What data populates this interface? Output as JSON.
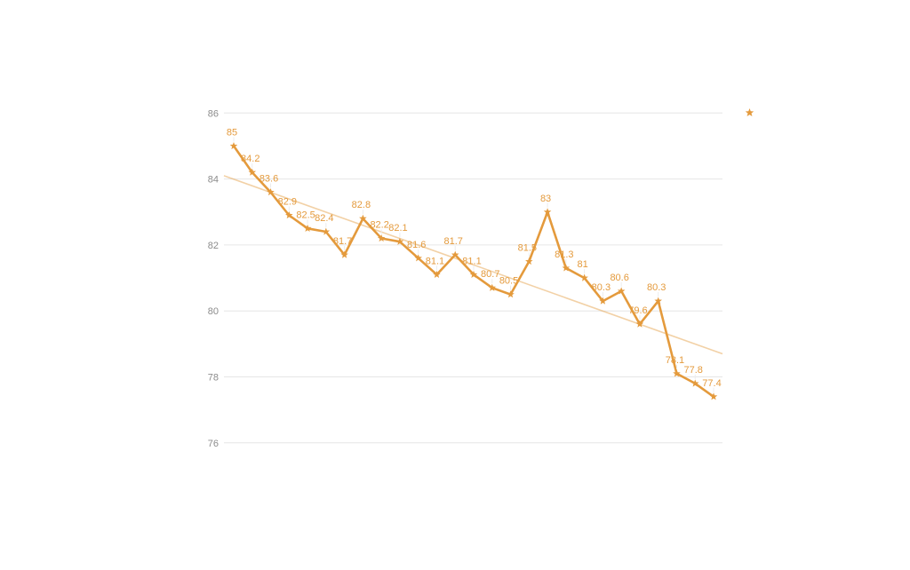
{
  "chart_data": {
    "type": "line",
    "title": "",
    "series": [
      {
        "name": "",
        "marker": "star",
        "values": [
          85,
          84.2,
          83.6,
          82.9,
          82.5,
          82.4,
          81.7,
          82.8,
          82.2,
          82.1,
          81.6,
          81.1,
          81.7,
          81.1,
          80.7,
          80.5,
          81.5,
          83,
          81.3,
          81,
          80.3,
          80.6,
          79.6,
          80.3,
          78.1,
          77.8,
          77.4
        ]
      }
    ],
    "data_labels": true,
    "trendline": {
      "start_value": 84.1,
      "end_value": 78.7
    },
    "y_ticks": [
      86,
      84,
      82,
      80,
      78,
      76
    ],
    "ylim": [
      76,
      86
    ],
    "grid": true,
    "legend_position": "top-right",
    "legend_marker": "star-icon"
  },
  "colors": {
    "series": "#E49A3C",
    "data_label": "#E49A3C",
    "trendline": "#E49A3C",
    "trendline_opacity": "0.45",
    "gridline": "#E6E6E6",
    "tick_label": "#8C8C8C",
    "leader_line": "#ECECEC",
    "background": "#FFFFFF"
  }
}
